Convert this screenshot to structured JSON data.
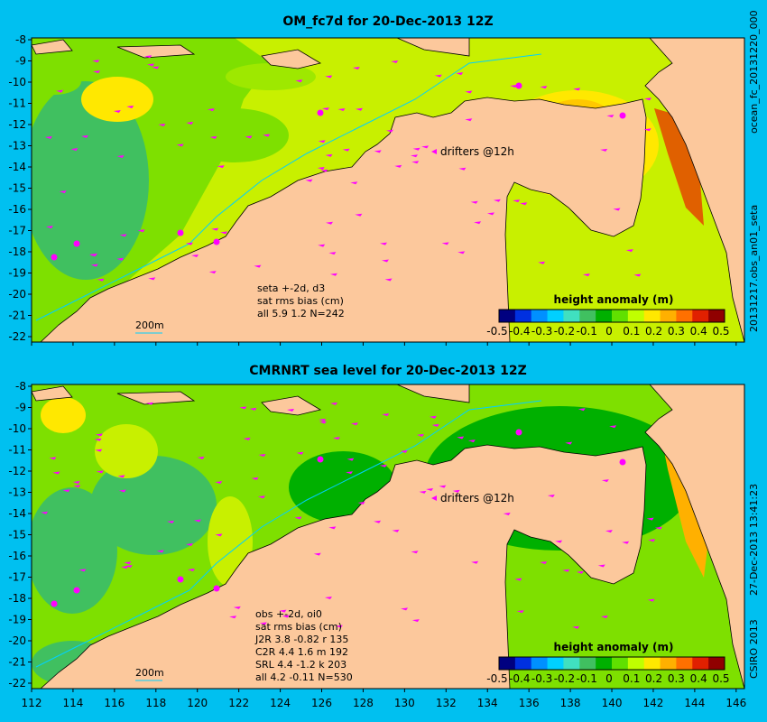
{
  "panels": [
    {
      "title": "OM_fc7d for 20-Dec-2013 12Z",
      "side_label": "ocean_fc_20131220_000",
      "side_label2": "20131217.obs_an01_seta",
      "drifters": "drifters @12h",
      "stats": [
        "seta +-2d, d3",
        "sat rms bias (cm)",
        "all 5.9 1.2 N=242"
      ],
      "contour": "200m",
      "legend_title": "height anomaly (m)"
    },
    {
      "title": "CMRNRT sea level  for 20-Dec-2013 12Z",
      "side_label": "27-Dec-2013 13:41:23",
      "side_label2": "CSIRO 2013",
      "drifters": "drifters @12h",
      "stats": [
        "obs +-2d, oi0",
        "sat rms bias (cm)",
        "J2R   3.8 -0.82 r 135",
        "C2R   4.4 1.6 m 192",
        "SRL   4.4 -1.2 k 203",
        "all   4.2 -0.11 N=530"
      ],
      "contour": "200m",
      "legend_title": "height anomaly (m)"
    }
  ],
  "y_ticks": [
    "-8",
    "-9",
    "-10",
    "-11",
    "-12",
    "-13",
    "-14",
    "-15",
    "-16",
    "-17",
    "-18",
    "-19",
    "-20",
    "-21",
    "-22"
  ],
  "x_ticks": [
    "112",
    "114",
    "116",
    "118",
    "120",
    "122",
    "124",
    "126",
    "128",
    "130",
    "132",
    "134",
    "136",
    "138",
    "140",
    "142",
    "144",
    "146"
  ],
  "legend_ticks": [
    "-0.5",
    "-0.4",
    "-0.3",
    "-0.2",
    "-0.1",
    "0",
    "0.1",
    "0.2",
    "0.3",
    "0.4",
    "0.5"
  ],
  "colors": {
    "background": "#00c0f0",
    "land": "#fcc89c",
    "scale": [
      "#000080",
      "#0030e0",
      "#0090ff",
      "#00d0ff",
      "#40e0c0",
      "#40c060",
      "#00b000",
      "#60e000",
      "#c0ff00",
      "#ffe800",
      "#ffb000",
      "#ff7000",
      "#e02000",
      "#900000"
    ]
  }
}
